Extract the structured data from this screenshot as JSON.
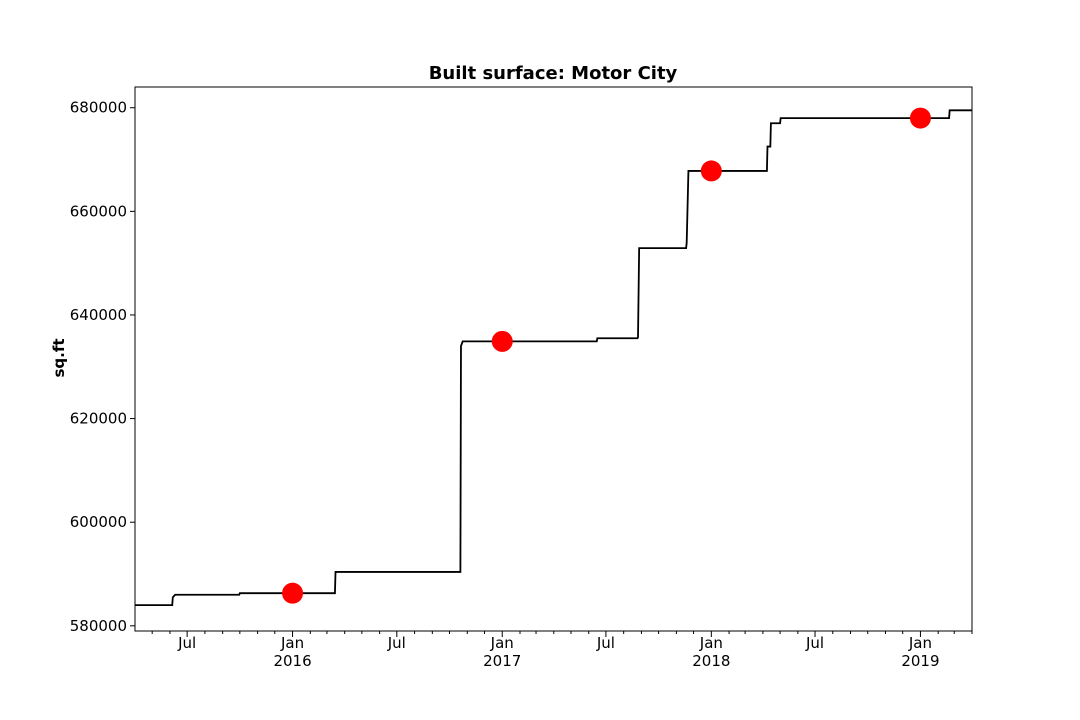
{
  "chart_data": {
    "type": "line",
    "title": "Built surface: Motor City",
    "xlabel": "",
    "ylabel": "sq.ft",
    "xlim": [
      "2015-04-01",
      "2019-04-01"
    ],
    "ylim": [
      579000,
      684000
    ],
    "grid": false,
    "legend": "none",
    "y_ticks": [
      {
        "value": 580000,
        "label": "580000"
      },
      {
        "value": 600000,
        "label": "600000"
      },
      {
        "value": 620000,
        "label": "620000"
      },
      {
        "value": 640000,
        "label": "640000"
      },
      {
        "value": 660000,
        "label": "660000"
      },
      {
        "value": 680000,
        "label": "680000"
      }
    ],
    "x_ticks": [
      {
        "date": "2015-07-01",
        "label": "Jul",
        "sublabel": ""
      },
      {
        "date": "2016-01-01",
        "label": "Jan",
        "sublabel": "2016"
      },
      {
        "date": "2016-07-01",
        "label": "Jul",
        "sublabel": ""
      },
      {
        "date": "2017-01-01",
        "label": "Jan",
        "sublabel": "2017"
      },
      {
        "date": "2017-07-01",
        "label": "Jul",
        "sublabel": ""
      },
      {
        "date": "2018-01-01",
        "label": "Jan",
        "sublabel": "2018"
      },
      {
        "date": "2018-07-01",
        "label": "Jul",
        "sublabel": ""
      },
      {
        "date": "2019-01-01",
        "label": "Jan",
        "sublabel": "2019"
      }
    ],
    "minor_tick_dates": [
      "2015-05-01",
      "2015-06-01",
      "2015-08-01",
      "2015-09-01",
      "2015-10-01",
      "2015-11-01",
      "2015-12-01",
      "2016-02-01",
      "2016-03-01",
      "2016-04-01",
      "2016-05-01",
      "2016-06-01",
      "2016-08-01",
      "2016-09-01",
      "2016-10-01",
      "2016-11-01",
      "2016-12-01",
      "2017-02-01",
      "2017-03-01",
      "2017-04-01",
      "2017-05-01",
      "2017-06-01",
      "2017-08-01",
      "2017-09-01",
      "2017-10-01",
      "2017-11-01",
      "2017-12-01",
      "2018-02-01",
      "2018-03-01",
      "2018-04-01",
      "2018-05-01",
      "2018-06-01",
      "2018-08-01",
      "2018-09-01",
      "2018-10-01",
      "2018-11-01",
      "2018-12-01",
      "2019-02-01",
      "2019-03-01",
      "2019-04-01"
    ],
    "series": [
      {
        "type": "step",
        "color": "#000000",
        "points": [
          {
            "x": "2015-04-01",
            "y": 584000
          },
          {
            "x": "2015-06-05",
            "y": 584000
          },
          {
            "x": "2015-06-06",
            "y": 585500
          },
          {
            "x": "2015-06-10",
            "y": 586000
          },
          {
            "x": "2015-09-30",
            "y": 586000
          },
          {
            "x": "2015-10-01",
            "y": 586300
          },
          {
            "x": "2016-03-15",
            "y": 586300
          },
          {
            "x": "2016-03-16",
            "y": 590400
          },
          {
            "x": "2016-10-20",
            "y": 590400
          },
          {
            "x": "2016-10-21",
            "y": 634000
          },
          {
            "x": "2016-10-24",
            "y": 634900
          },
          {
            "x": "2017-06-15",
            "y": 634900
          },
          {
            "x": "2017-06-16",
            "y": 635500
          },
          {
            "x": "2017-08-25",
            "y": 635500
          },
          {
            "x": "2017-08-26",
            "y": 635700
          },
          {
            "x": "2017-08-28",
            "y": 652900
          },
          {
            "x": "2017-11-18",
            "y": 652900
          },
          {
            "x": "2017-11-19",
            "y": 654000
          },
          {
            "x": "2017-11-22",
            "y": 667800
          },
          {
            "x": "2018-04-08",
            "y": 667800
          },
          {
            "x": "2018-04-09",
            "y": 672500
          },
          {
            "x": "2018-04-14",
            "y": 672500
          },
          {
            "x": "2018-04-15",
            "y": 677000
          },
          {
            "x": "2018-05-01",
            "y": 677000
          },
          {
            "x": "2018-05-02",
            "y": 678000
          },
          {
            "x": "2019-02-20",
            "y": 678000
          },
          {
            "x": "2019-02-21",
            "y": 679500
          },
          {
            "x": "2019-04-01",
            "y": 679500
          }
        ]
      },
      {
        "type": "scatter",
        "color": "#ff0000",
        "points": [
          {
            "x": "2016-01-01",
            "y": 586300
          },
          {
            "x": "2017-01-01",
            "y": 634900
          },
          {
            "x": "2018-01-01",
            "y": 667800
          },
          {
            "x": "2019-01-01",
            "y": 678000
          }
        ]
      }
    ]
  }
}
